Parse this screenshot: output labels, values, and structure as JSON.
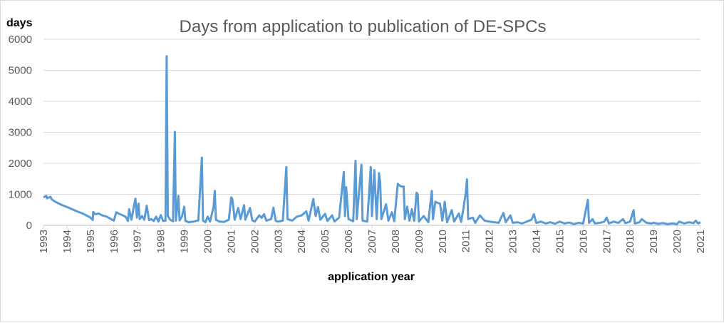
{
  "chart_data": {
    "type": "line",
    "title": "Days from application to publication of DE-SPCs",
    "ylabel": "days",
    "xlabel": "application year",
    "ylim": [
      0,
      6000
    ],
    "yticks": [
      "0",
      "1000",
      "2000",
      "3000",
      "4000",
      "5000",
      "6000"
    ],
    "xlim": [
      1993,
      2021
    ],
    "xticks": [
      "1993",
      "1994",
      "1995",
      "1996",
      "1997",
      "1998",
      "1999",
      "2000",
      "2001",
      "2002",
      "2003",
      "2004",
      "2005",
      "2006",
      "2007",
      "2008",
      "2009",
      "2010",
      "2011",
      "2012",
      "2013",
      "2014",
      "2015",
      "2016",
      "2017",
      "2018",
      "2019",
      "2020",
      "2021"
    ],
    "grid": "horizontal",
    "legend": "none",
    "series_color": "#5b9bd5",
    "series": [
      {
        "values_note": "approximate daily series read from plot",
        "points": [
          [
            1993.0,
            900
          ],
          [
            1993.12,
            950
          ],
          [
            1993.15,
            870
          ],
          [
            1993.3,
            920
          ],
          [
            1993.35,
            840
          ],
          [
            1993.5,
            760
          ],
          [
            1993.8,
            650
          ],
          [
            1994.1,
            560
          ],
          [
            1994.4,
            460
          ],
          [
            1994.7,
            370
          ],
          [
            1995.0,
            250
          ],
          [
            1995.1,
            170
          ],
          [
            1995.12,
            430
          ],
          [
            1995.2,
            360
          ],
          [
            1995.35,
            380
          ],
          [
            1995.5,
            320
          ],
          [
            1995.7,
            280
          ],
          [
            1995.85,
            210
          ],
          [
            1996.0,
            150
          ],
          [
            1996.1,
            420
          ],
          [
            1996.2,
            380
          ],
          [
            1996.35,
            330
          ],
          [
            1996.5,
            280
          ],
          [
            1996.6,
            140
          ],
          [
            1996.65,
            520
          ],
          [
            1996.75,
            180
          ],
          [
            1996.85,
            600
          ],
          [
            1996.92,
            860
          ],
          [
            1996.98,
            250
          ],
          [
            1997.05,
            700
          ],
          [
            1997.1,
            200
          ],
          [
            1997.2,
            300
          ],
          [
            1997.3,
            180
          ],
          [
            1997.4,
            630
          ],
          [
            1997.5,
            170
          ],
          [
            1997.6,
            200
          ],
          [
            1997.7,
            140
          ],
          [
            1997.8,
            280
          ],
          [
            1997.9,
            120
          ],
          [
            1998.0,
            330
          ],
          [
            1998.1,
            140
          ],
          [
            1998.2,
            150
          ],
          [
            1998.25,
            5450
          ],
          [
            1998.3,
            300
          ],
          [
            1998.4,
            180
          ],
          [
            1998.52,
            130
          ],
          [
            1998.6,
            3010
          ],
          [
            1998.64,
            150
          ],
          [
            1998.75,
            950
          ],
          [
            1998.8,
            160
          ],
          [
            1998.9,
            280
          ],
          [
            1999.0,
            600
          ],
          [
            1999.05,
            140
          ],
          [
            1999.2,
            100
          ],
          [
            1999.4,
            120
          ],
          [
            1999.6,
            160
          ],
          [
            1999.75,
            2180
          ],
          [
            1999.8,
            150
          ],
          [
            1999.9,
            100
          ],
          [
            2000.0,
            280
          ],
          [
            2000.1,
            120
          ],
          [
            2000.25,
            600
          ],
          [
            2000.3,
            1110
          ],
          [
            2000.35,
            180
          ],
          [
            2000.5,
            120
          ],
          [
            2000.7,
            110
          ],
          [
            2000.9,
            180
          ],
          [
            2001.0,
            900
          ],
          [
            2001.05,
            850
          ],
          [
            2001.15,
            180
          ],
          [
            2001.3,
            560
          ],
          [
            2001.4,
            200
          ],
          [
            2001.55,
            650
          ],
          [
            2001.6,
            180
          ],
          [
            2001.8,
            560
          ],
          [
            2001.9,
            160
          ],
          [
            2002.0,
            120
          ],
          [
            2002.2,
            320
          ],
          [
            2002.3,
            240
          ],
          [
            2002.4,
            360
          ],
          [
            2002.5,
            150
          ],
          [
            2002.7,
            200
          ],
          [
            2002.8,
            570
          ],
          [
            2002.9,
            140
          ],
          [
            2003.0,
            120
          ],
          [
            2003.2,
            150
          ],
          [
            2003.35,
            1880
          ],
          [
            2003.4,
            200
          ],
          [
            2003.6,
            150
          ],
          [
            2003.8,
            280
          ],
          [
            2004.0,
            320
          ],
          [
            2004.2,
            450
          ],
          [
            2004.3,
            150
          ],
          [
            2004.5,
            850
          ],
          [
            2004.6,
            300
          ],
          [
            2004.7,
            590
          ],
          [
            2004.8,
            180
          ],
          [
            2005.0,
            370
          ],
          [
            2005.1,
            140
          ],
          [
            2005.3,
            320
          ],
          [
            2005.4,
            120
          ],
          [
            2005.6,
            250
          ],
          [
            2005.8,
            1720
          ],
          [
            2005.85,
            300
          ],
          [
            2005.9,
            1230
          ],
          [
            2006.0,
            200
          ],
          [
            2006.2,
            130
          ],
          [
            2006.3,
            2080
          ],
          [
            2006.35,
            200
          ],
          [
            2006.55,
            1950
          ],
          [
            2006.6,
            150
          ],
          [
            2006.8,
            120
          ],
          [
            2006.95,
            1880
          ],
          [
            2007.0,
            300
          ],
          [
            2007.1,
            1780
          ],
          [
            2007.2,
            200
          ],
          [
            2007.3,
            1680
          ],
          [
            2007.35,
            1380
          ],
          [
            2007.4,
            200
          ],
          [
            2007.6,
            680
          ],
          [
            2007.7,
            150
          ],
          [
            2007.85,
            420
          ],
          [
            2007.95,
            130
          ],
          [
            2008.1,
            1340
          ],
          [
            2008.15,
            1300
          ],
          [
            2008.25,
            1250
          ],
          [
            2008.35,
            1250
          ],
          [
            2008.4,
            200
          ],
          [
            2008.5,
            600
          ],
          [
            2008.6,
            150
          ],
          [
            2008.7,
            520
          ],
          [
            2008.8,
            140
          ],
          [
            2008.9,
            1050
          ],
          [
            2008.95,
            1000
          ],
          [
            2009.0,
            120
          ],
          [
            2009.2,
            300
          ],
          [
            2009.4,
            100
          ],
          [
            2009.55,
            1110
          ],
          [
            2009.6,
            200
          ],
          [
            2009.7,
            760
          ],
          [
            2009.8,
            720
          ],
          [
            2009.9,
            700
          ],
          [
            2010.0,
            150
          ],
          [
            2010.1,
            760
          ],
          [
            2010.2,
            100
          ],
          [
            2010.4,
            490
          ],
          [
            2010.5,
            120
          ],
          [
            2010.7,
            380
          ],
          [
            2010.8,
            110
          ],
          [
            2010.9,
            550
          ],
          [
            2011.0,
            1060
          ],
          [
            2011.05,
            1480
          ],
          [
            2011.1,
            200
          ],
          [
            2011.3,
            250
          ],
          [
            2011.4,
            80
          ],
          [
            2011.6,
            320
          ],
          [
            2011.8,
            150
          ],
          [
            2012.0,
            120
          ],
          [
            2012.2,
            100
          ],
          [
            2012.4,
            80
          ],
          [
            2012.6,
            400
          ],
          [
            2012.7,
            100
          ],
          [
            2012.9,
            320
          ],
          [
            2013.0,
            80
          ],
          [
            2013.2,
            100
          ],
          [
            2013.4,
            60
          ],
          [
            2013.6,
            120
          ],
          [
            2013.8,
            180
          ],
          [
            2013.9,
            360
          ],
          [
            2014.0,
            80
          ],
          [
            2014.2,
            120
          ],
          [
            2014.4,
            60
          ],
          [
            2014.6,
            100
          ],
          [
            2014.8,
            50
          ],
          [
            2015.0,
            120
          ],
          [
            2015.2,
            60
          ],
          [
            2015.4,
            90
          ],
          [
            2015.6,
            40
          ],
          [
            2015.8,
            80
          ],
          [
            2016.0,
            60
          ],
          [
            2016.2,
            820
          ],
          [
            2016.25,
            80
          ],
          [
            2016.4,
            200
          ],
          [
            2016.5,
            60
          ],
          [
            2016.7,
            80
          ],
          [
            2016.9,
            120
          ],
          [
            2017.0,
            250
          ],
          [
            2017.1,
            60
          ],
          [
            2017.3,
            120
          ],
          [
            2017.5,
            80
          ],
          [
            2017.7,
            200
          ],
          [
            2017.8,
            70
          ],
          [
            2018.0,
            120
          ],
          [
            2018.15,
            490
          ],
          [
            2018.2,
            60
          ],
          [
            2018.4,
            100
          ],
          [
            2018.5,
            200
          ],
          [
            2018.7,
            80
          ],
          [
            2018.9,
            60
          ],
          [
            2019.0,
            80
          ],
          [
            2019.2,
            50
          ],
          [
            2019.4,
            70
          ],
          [
            2019.6,
            40
          ],
          [
            2019.8,
            60
          ],
          [
            2020.0,
            40
          ],
          [
            2020.1,
            120
          ],
          [
            2020.3,
            60
          ],
          [
            2020.5,
            100
          ],
          [
            2020.7,
            70
          ],
          [
            2020.8,
            150
          ],
          [
            2020.9,
            60
          ],
          [
            2021.0,
            100
          ]
        ]
      }
    ]
  }
}
